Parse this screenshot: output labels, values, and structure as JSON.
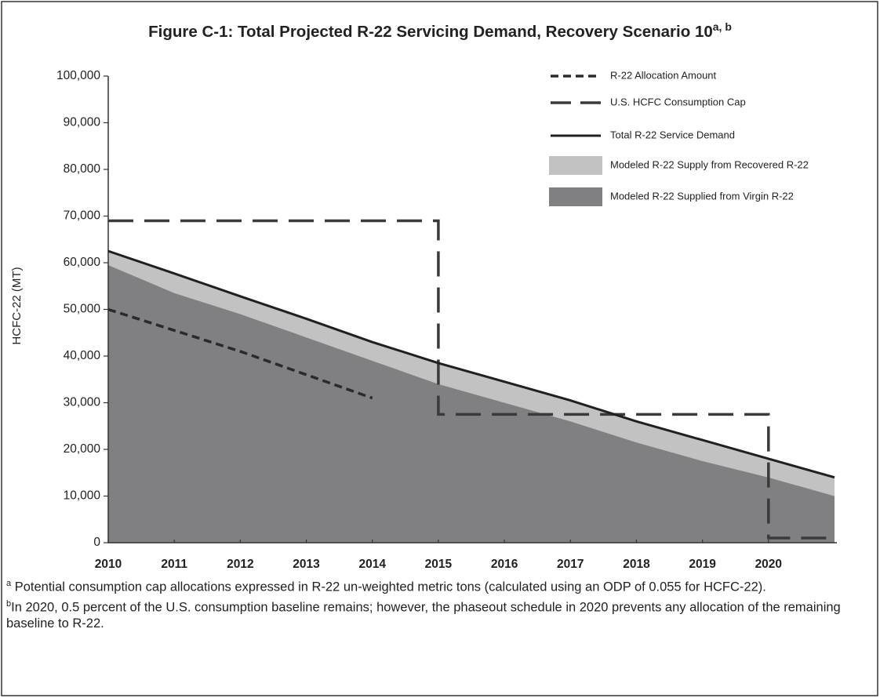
{
  "chart_data": {
    "type": "area",
    "title": "Figure C-1: Total Projected R-22 Servicing Demand, Recovery Scenario 10",
    "title_superscript": "a, b",
    "ylabel": "HCFC-22 (MT)",
    "x": [
      2010,
      2011,
      2012,
      2013,
      2014,
      2015,
      2016,
      2017,
      2018,
      2019,
      2020,
      2021
    ],
    "xlim": [
      2010,
      2021
    ],
    "xticks": [
      2010,
      2011,
      2012,
      2013,
      2014,
      2015,
      2016,
      2017,
      2018,
      2019,
      2020
    ],
    "ylim": [
      0,
      100000
    ],
    "yticks": [
      0,
      {
        "value": 10000,
        "label": "10,000"
      },
      {
        "value": 20000,
        "label": "20,000"
      },
      {
        "value": 30000,
        "label": "30,000"
      },
      {
        "value": 40000,
        "label": "40,000"
      },
      {
        "value": 50000,
        "label": "50,000"
      },
      {
        "value": 60000,
        "label": "60,000"
      },
      {
        "value": 70000,
        "label": "70,000"
      },
      {
        "value": 80000,
        "label": "80,000"
      },
      {
        "value": 90000,
        "label": "90,000"
      },
      {
        "value": 100000,
        "label": "100,000"
      }
    ],
    "series": [
      {
        "name": "R-22 Allocation Amount",
        "kind": "dotted-line",
        "color": "#2a2a2a",
        "x": [
          2010,
          2011,
          2012,
          2013,
          2014
        ],
        "values": [
          50000,
          45500,
          41000,
          36000,
          31000
        ]
      },
      {
        "name": "U.S. HCFC Consumption Cap",
        "kind": "dashed-line",
        "color": "#3a3a3a",
        "x": [
          2010,
          2015,
          2015,
          2020,
          2020,
          2021
        ],
        "values": [
          69000,
          69000,
          27500,
          27500,
          1000,
          1000
        ]
      },
      {
        "name": "Total R-22 Service Demand",
        "kind": "line",
        "color": "#231f20",
        "values": [
          62500,
          57700,
          52800,
          48000,
          43000,
          38500,
          34500,
          30500,
          26000,
          22000,
          18000,
          14000
        ]
      },
      {
        "name": "Modeled R-22 Supply from Recovered R-22",
        "kind": "stacked-area",
        "color": "#c2c2c2",
        "values": [
          3000,
          4200,
          3800,
          4000,
          4000,
          4500,
          4500,
          4500,
          4500,
          4500,
          4000,
          4000
        ]
      },
      {
        "name": "Modeled R-22 Supplied from Virgin R-22",
        "kind": "stacked-area",
        "color": "#808083",
        "values": [
          59500,
          53500,
          49000,
          44000,
          39000,
          34000,
          30000,
          26000,
          21500,
          17500,
          14000,
          10000
        ]
      }
    ],
    "notes": [
      {
        "marker": "a",
        "text": "Potential consumption cap allocations expressed in R-22 un-weighted metric tons (calculated using an ODP of 0.055 for HCFC-22)."
      },
      {
        "marker": "b",
        "text": "In 2020, 0.5 percent of the U.S. consumption baseline remains; however, the phaseout schedule in 2020 prevents any allocation of the remaining baseline to R-22."
      }
    ]
  }
}
